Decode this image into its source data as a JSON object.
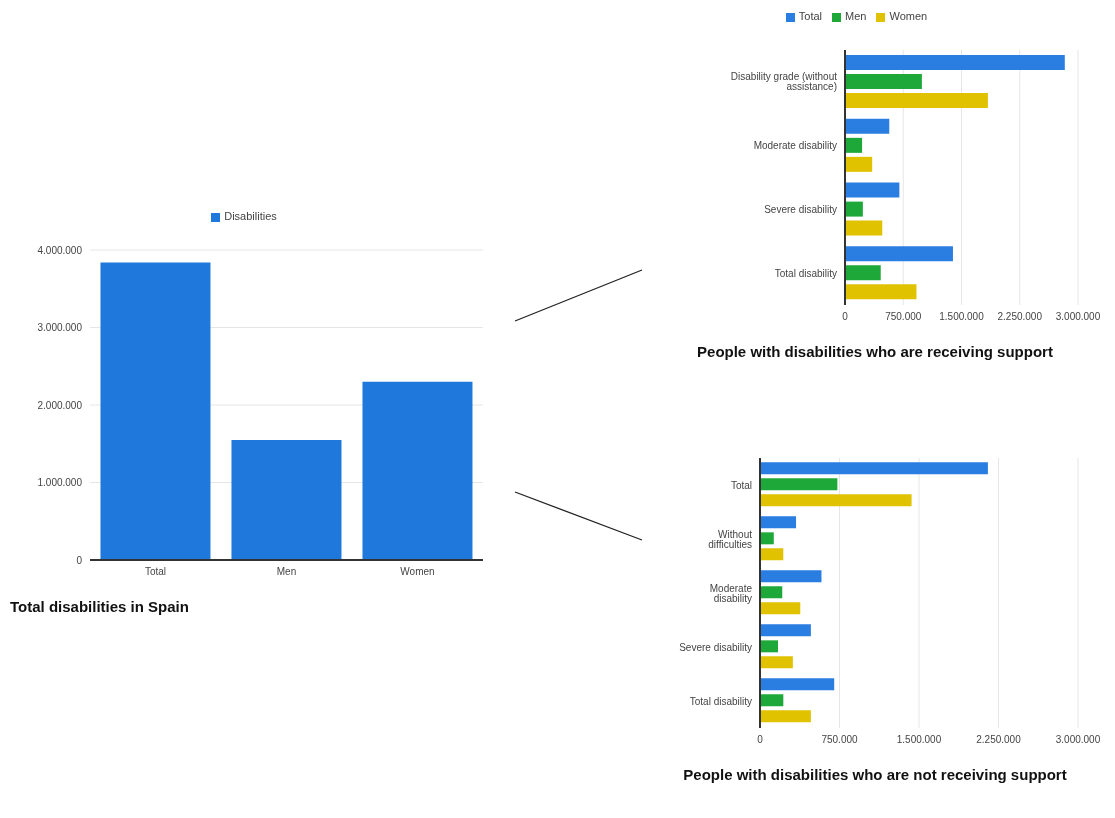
{
  "chart_data": [
    {
      "type": "bar",
      "title": "Total disabilities in Spain",
      "categories": [
        "Total",
        "Men",
        "Women"
      ],
      "series": [
        {
          "name": "Disabilities",
          "color": "#1f78dc",
          "values": [
            3840000,
            1550000,
            2300000
          ]
        }
      ],
      "ylim": [
        0,
        4000000
      ],
      "yticks": [
        0,
        {
          "value": 1000000,
          "label": "1.000.000"
        },
        {
          "value": 2000000,
          "label": "2.000.000"
        },
        {
          "value": 3000000,
          "label": "3.000.000"
        },
        {
          "value": 4000000,
          "label": "4.000.000"
        }
      ],
      "grid": "y",
      "legend": "top"
    },
    {
      "type": "bar",
      "orientation": "horizontal",
      "title": "People with disabilities who are receiving support",
      "categories": [
        "Disability grade (without assistance)",
        "Moderate disability",
        "Severe disability",
        "Total disability"
      ],
      "series": [
        {
          "name": "Total",
          "color": "#2a7de1",
          "values": [
            2830000,
            570000,
            700000,
            1390000
          ]
        },
        {
          "name": "Men",
          "color": "#1fa83a",
          "values": [
            990000,
            220000,
            230000,
            460000
          ]
        },
        {
          "name": "Women",
          "color": "#e0c200",
          "values": [
            1840000,
            350000,
            480000,
            920000
          ]
        }
      ],
      "xlim": [
        0,
        3000000
      ],
      "xticks": [
        0,
        {
          "value": 750000,
          "label": "750.000"
        },
        {
          "value": 1500000,
          "label": "1.500.000"
        },
        {
          "value": 2250000,
          "label": "2.250.000"
        },
        {
          "value": 3000000,
          "label": "3.000.000"
        }
      ],
      "grid": "x",
      "legend": "top"
    },
    {
      "type": "bar",
      "orientation": "horizontal",
      "title": "People with disabilities who are not receiving support",
      "categories": [
        "Total",
        "Without difficulties",
        "Moderate disability",
        "Severe disability",
        "Total disability"
      ],
      "series": [
        {
          "color": "#2a7de1",
          "values": [
            2150000,
            340000,
            580000,
            480000,
            700000
          ]
        },
        {
          "color": "#1fa83a",
          "values": [
            730000,
            130000,
            210000,
            170000,
            220000
          ]
        },
        {
          "color": "#e0c200",
          "values": [
            1430000,
            220000,
            380000,
            310000,
            480000
          ]
        }
      ],
      "xlim": [
        0,
        3000000
      ],
      "xticks": [
        0,
        {
          "value": 750000,
          "label": "750.000"
        },
        {
          "value": 1500000,
          "label": "1.500.000"
        },
        {
          "value": 2250000,
          "label": "2.250.000"
        },
        {
          "value": 3000000,
          "label": "3.000.000"
        }
      ],
      "grid": "x"
    }
  ]
}
